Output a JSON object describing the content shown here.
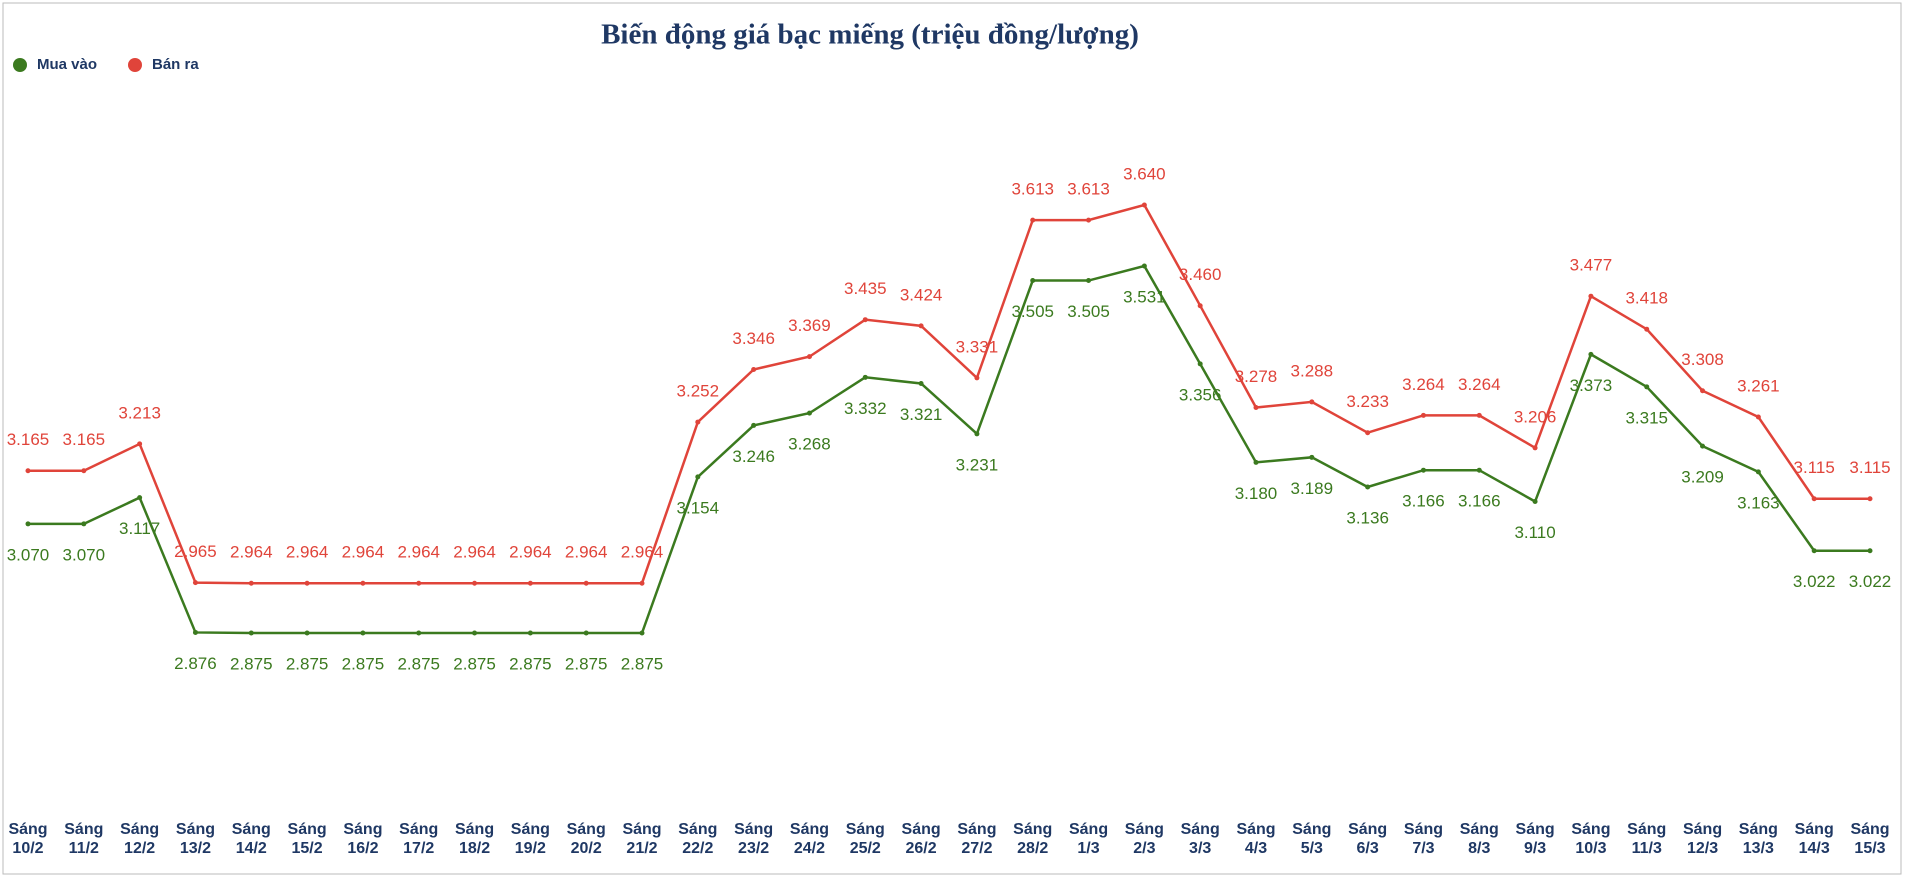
{
  "chart_data": {
    "type": "line",
    "title": "Biến động giá bạc miếng (triệu đồng/lượng)",
    "categories": [
      "Sáng 10/2",
      "Sáng 11/2",
      "Sáng 12/2",
      "Sáng 13/2",
      "Sáng 14/2",
      "Sáng 15/2",
      "Sáng 16/2",
      "Sáng 17/2",
      "Sáng 18/2",
      "Sáng 19/2",
      "Sáng 20/2",
      "Sáng 21/2",
      "Sáng 22/2",
      "Sáng 23/2",
      "Sáng 24/2",
      "Sáng 25/2",
      "Sáng 26/2",
      "Sáng 27/2",
      "Sáng 28/2",
      "Sáng 1/3",
      "Sáng 2/3",
      "Sáng 3/3",
      "Sáng 4/3",
      "Sáng 5/3",
      "Sáng 6/3",
      "Sáng 7/3",
      "Sáng 8/3",
      "Sáng 9/3",
      "Sáng 10/3",
      "Sáng 11/3",
      "Sáng 12/3",
      "Sáng 13/3",
      "Sáng 14/3",
      "Sáng 15/3"
    ],
    "series": [
      {
        "name": "Mua vào",
        "color": "#3b7a1f",
        "values": [
          3.07,
          3.07,
          3.117,
          2.876,
          2.875,
          2.875,
          2.875,
          2.875,
          2.875,
          2.875,
          2.875,
          2.875,
          3.154,
          3.246,
          3.268,
          3.332,
          3.321,
          3.231,
          3.505,
          3.505,
          3.531,
          3.356,
          3.18,
          3.189,
          3.136,
          3.166,
          3.166,
          3.11,
          3.373,
          3.315,
          3.209,
          3.163,
          3.022,
          3.022
        ],
        "value_labels": [
          "3.070",
          "3.070",
          "3.117",
          "2.876",
          "2.875",
          "2.875",
          "2.875",
          "2.875",
          "2.875",
          "2.875",
          "2.875",
          "2.875",
          "3.154",
          "3.246",
          "3.268",
          "3.332",
          "3.321",
          "3.231",
          "3.505",
          "3.505",
          "3.531",
          "3.356",
          "3.180",
          "3.189",
          "3.136",
          "3.166",
          "3.166",
          "3.110",
          "3.373",
          "3.315",
          "3.209",
          "3.163",
          "3.022",
          "3.022"
        ]
      },
      {
        "name": "Bán ra",
        "color": "#e0443a",
        "values": [
          3.165,
          3.165,
          3.213,
          2.965,
          2.964,
          2.964,
          2.964,
          2.964,
          2.964,
          2.964,
          2.964,
          2.964,
          3.252,
          3.346,
          3.369,
          3.435,
          3.424,
          3.331,
          3.613,
          3.613,
          3.64,
          3.46,
          3.278,
          3.288,
          3.233,
          3.264,
          3.264,
          3.206,
          3.477,
          3.418,
          3.308,
          3.261,
          3.115,
          3.115
        ],
        "value_labels": [
          "3.165",
          "3.165",
          "3.213",
          "2.965",
          "2.964",
          "2.964",
          "2.964",
          "2.964",
          "2.964",
          "2.964",
          "2.964",
          "2.964",
          "3.252",
          "3.346",
          "3.369",
          "3.435",
          "3.424",
          "3.331",
          "3.613",
          "3.613",
          "3.640",
          "3.460",
          "3.278",
          "3.288",
          "3.233",
          "3.264",
          "3.264",
          "3.206",
          "3.477",
          "3.418",
          "3.308",
          "3.261",
          "3.115",
          "3.115"
        ]
      }
    ]
  }
}
